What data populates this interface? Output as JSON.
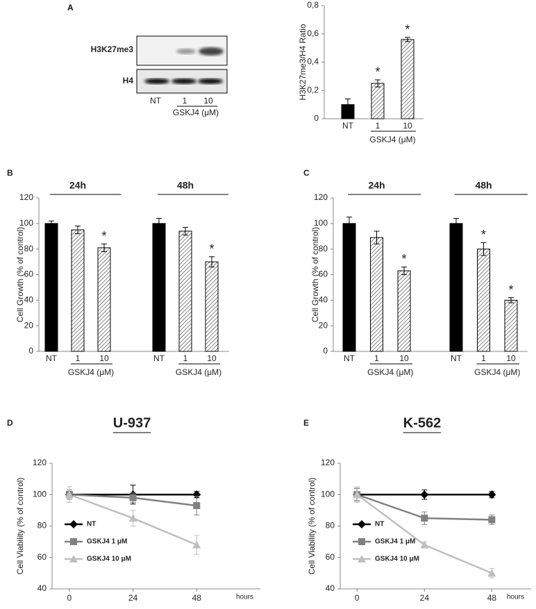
{
  "blot": {
    "panel": "A",
    "rows": [
      "H3K27me3",
      "H4"
    ],
    "lanes": [
      "NT",
      "1",
      "10"
    ],
    "group_label": "GSKJ4 (μM)"
  },
  "chart_data": [
    {
      "type": "bar",
      "panel": "A",
      "ylabel": "H3K27me3/H4 Ratio",
      "categories": [
        "NT",
        "1",
        "10"
      ],
      "values": [
        0.1,
        0.25,
        0.56
      ],
      "errors": [
        0.04,
        0.025,
        0.015
      ],
      "bar_fills": [
        "solid",
        "hatched",
        "hatched"
      ],
      "color": "#000000",
      "group_label": "GSKJ4 (μM)",
      "annotations": [
        {
          "index": 1,
          "text": "*"
        },
        {
          "index": 2,
          "text": "*"
        }
      ],
      "ylim": [
        0,
        0.8
      ],
      "yticks": [
        0,
        {
          "value": 0.2,
          "label": "0,2"
        },
        {
          "value": 0.4,
          "label": "0,4"
        },
        {
          "value": 0.6,
          "label": "0,6"
        },
        {
          "value": 0.8,
          "label": "0,8"
        }
      ],
      "grid": false
    },
    {
      "type": "bar",
      "panel": "B",
      "ylabel": "Cell Growth (% of control)",
      "color": "#000000",
      "groups": [
        {
          "name": "24h",
          "categories": [
            "NT",
            "1",
            "10"
          ],
          "values": [
            100,
            95,
            81
          ],
          "errors": [
            2,
            3,
            3
          ],
          "bar_fills": [
            "solid",
            "hatched",
            "hatched"
          ],
          "group_label": "GSKJ4 (μM)",
          "annotations": [
            {
              "index": 2,
              "text": "*"
            }
          ]
        },
        {
          "name": "48h",
          "categories": [
            "NT",
            "1",
            "10"
          ],
          "values": [
            100,
            94,
            70
          ],
          "errors": [
            4,
            3,
            4
          ],
          "bar_fills": [
            "solid",
            "hatched",
            "hatched"
          ],
          "group_label": "GSKJ4 (μM)",
          "annotations": [
            {
              "index": 2,
              "text": "*"
            }
          ]
        }
      ],
      "ylim": [
        0,
        120
      ],
      "yticks": [
        0,
        20,
        40,
        60,
        80,
        100,
        120
      ],
      "grid": false
    },
    {
      "type": "bar",
      "panel": "C",
      "ylabel": "Cell Growth (% of control)",
      "color": "#000000",
      "groups": [
        {
          "name": "24h",
          "categories": [
            "NT",
            "1",
            "10"
          ],
          "values": [
            100,
            89,
            63
          ],
          "errors": [
            5,
            5,
            3
          ],
          "bar_fills": [
            "solid",
            "hatched",
            "hatched"
          ],
          "group_label": "GSKJ4 (μM)",
          "annotations": [
            {
              "index": 2,
              "text": "*"
            }
          ]
        },
        {
          "name": "48h",
          "categories": [
            "NT",
            "1",
            "10"
          ],
          "values": [
            100,
            80,
            40
          ],
          "errors": [
            4,
            5,
            2
          ],
          "bar_fills": [
            "solid",
            "hatched",
            "hatched"
          ],
          "group_label": "GSKJ4 (μM)",
          "annotations": [
            {
              "index": 1,
              "text": "*"
            },
            {
              "index": 2,
              "text": "*"
            }
          ]
        }
      ],
      "ylim": [
        0,
        120
      ],
      "yticks": [
        0,
        20,
        40,
        60,
        80,
        100,
        120
      ],
      "grid": false
    },
    {
      "type": "line",
      "panel": "D",
      "title": "U-937",
      "ylabel": "Cell Viability (% of control)",
      "xlabel": "hours",
      "x": [
        0,
        24,
        48
      ],
      "series": [
        {
          "name": "NT",
          "color": "#000000",
          "marker": "diamond",
          "values": [
            100,
            100,
            100
          ],
          "errors": [
            2,
            6,
            2
          ]
        },
        {
          "name": "GSKJ4 1 μM",
          "color": "#808080",
          "marker": "square",
          "values": [
            100,
            98,
            93
          ],
          "errors": [
            3,
            3,
            6
          ]
        },
        {
          "name": "GSKJ4 10 μM",
          "color": "#bfbfbf",
          "marker": "triangle",
          "values": [
            100,
            85,
            68
          ],
          "errors": [
            5,
            5,
            6
          ]
        }
      ],
      "xlim": [
        -6.5,
        72
      ],
      "xticks": [
        0,
        24,
        48
      ],
      "ylim": [
        40,
        120
      ],
      "yticks": [
        40,
        60,
        80,
        100,
        120
      ],
      "grid": false,
      "legend": "bottom-left"
    },
    {
      "type": "line",
      "panel": "E",
      "title": "K-562",
      "ylabel": "Cell Viability (% of control)",
      "xlabel": "hours",
      "x": [
        0,
        24,
        48
      ],
      "series": [
        {
          "name": "NT",
          "color": "#000000",
          "marker": "diamond",
          "values": [
            100,
            100,
            100
          ],
          "errors": [
            4,
            3,
            2
          ]
        },
        {
          "name": "GSKJ4 1 μM",
          "color": "#808080",
          "marker": "square",
          "values": [
            100,
            85,
            84
          ],
          "errors": [
            4,
            4,
            3
          ]
        },
        {
          "name": "GSKJ4 10 μM",
          "color": "#bfbfbf",
          "marker": "triangle",
          "values": [
            100,
            68,
            50
          ],
          "errors": [
            5,
            2,
            3
          ]
        }
      ],
      "xlim": [
        -6,
        62
      ],
      "xticks": [
        0,
        24,
        48
      ],
      "ylim": [
        40,
        120
      ],
      "yticks": [
        40,
        60,
        80,
        100,
        120
      ],
      "grid": false,
      "legend": "bottom-left"
    }
  ]
}
